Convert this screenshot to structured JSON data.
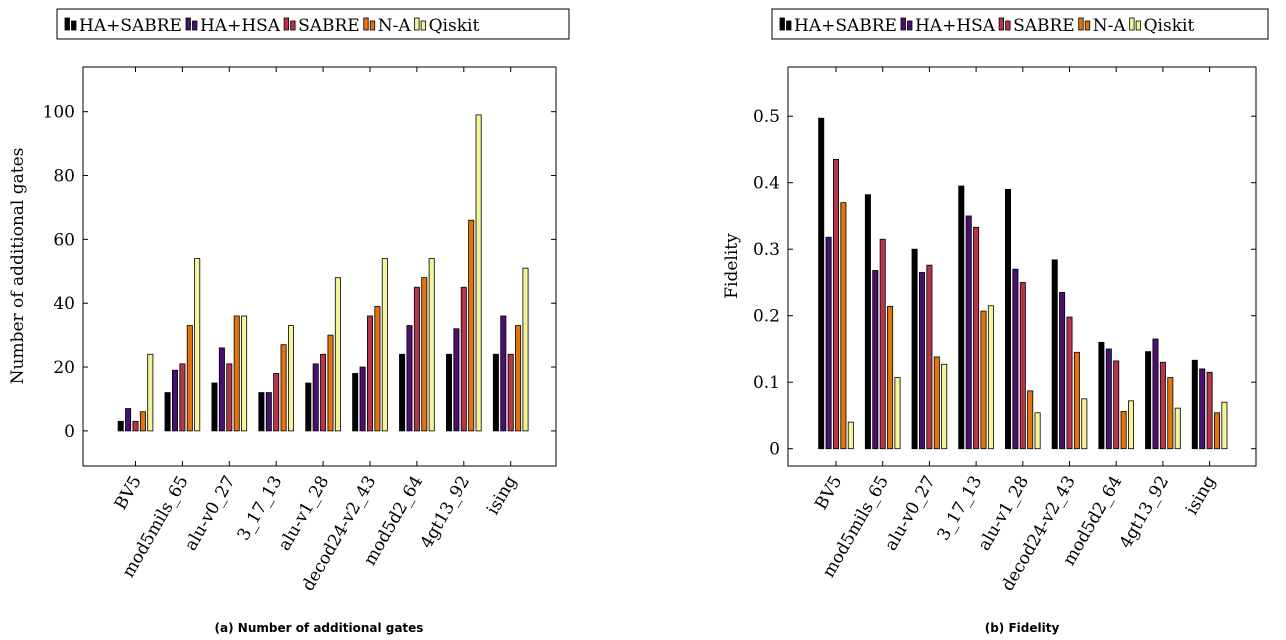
{
  "colors": {
    "HA+SABRE": "#000000",
    "HA+HSA": "#4a1070",
    "SABRE": "#b5364a",
    "N-A": "#e2730f",
    "Qiskit": "#f3f39a"
  },
  "chart_data": [
    {
      "type": "bar",
      "categories": [
        "BV5",
        "mod5mils_65",
        "alu-v0_27",
        "3_17_13",
        "alu-v1_28",
        "decod24-v2_43",
        "mod5d2_64",
        "4gt13_92",
        "ising"
      ],
      "series": [
        {
          "name": "HA+SABRE",
          "values": [
            3,
            12,
            15,
            12,
            15,
            18,
            24,
            24,
            24
          ]
        },
        {
          "name": "HA+HSA",
          "values": [
            7,
            19,
            26,
            12,
            21,
            20,
            33,
            32,
            36
          ]
        },
        {
          "name": "SABRE",
          "values": [
            3,
            21,
            21,
            18,
            24,
            36,
            45,
            45,
            24
          ]
        },
        {
          "name": "N-A",
          "values": [
            6,
            33,
            36,
            27,
            30,
            39,
            48,
            66,
            33
          ]
        },
        {
          "name": "Qiskit",
          "values": [
            24,
            54,
            36,
            33,
            48,
            54,
            54,
            99,
            51
          ]
        }
      ],
      "ylabel": "Number of additional gates",
      "yticks": [
        "0",
        "20",
        "40",
        "60",
        "80",
        "100"
      ],
      "ylim": [
        -11,
        114
      ],
      "legend": "top",
      "caption": "(a) Number of additional gates"
    },
    {
      "type": "bar",
      "categories": [
        "BV5",
        "mod5mils_65",
        "alu-v0_27",
        "3_17_13",
        "alu-v1_28",
        "decod24-v2_43",
        "mod5d2_64",
        "4gt13_92",
        "ising"
      ],
      "series": [
        {
          "name": "HA+SABRE",
          "values": [
            0.497,
            0.382,
            0.3,
            0.395,
            0.39,
            0.284,
            0.16,
            0.146,
            0.133
          ]
        },
        {
          "name": "HA+HSA",
          "values": [
            0.318,
            0.268,
            0.265,
            0.35,
            0.27,
            0.235,
            0.15,
            0.165,
            0.12
          ]
        },
        {
          "name": "SABRE",
          "values": [
            0.435,
            0.315,
            0.276,
            0.333,
            0.25,
            0.198,
            0.132,
            0.13,
            0.115
          ]
        },
        {
          "name": "N-A",
          "values": [
            0.37,
            0.214,
            0.138,
            0.207,
            0.087,
            0.145,
            0.056,
            0.107,
            0.054
          ]
        },
        {
          "name": "Qiskit",
          "values": [
            0.04,
            0.107,
            0.127,
            0.215,
            0.054,
            0.075,
            0.072,
            0.061,
            0.07
          ]
        }
      ],
      "ylabel": "Fidelity",
      "yticks": [
        "0",
        "0.1",
        "0.2",
        "0.3",
        "0.4",
        "0.5"
      ],
      "ylim": [
        -0.026,
        0.574
      ],
      "legend": "top",
      "caption": "(b) Fidelity"
    }
  ]
}
